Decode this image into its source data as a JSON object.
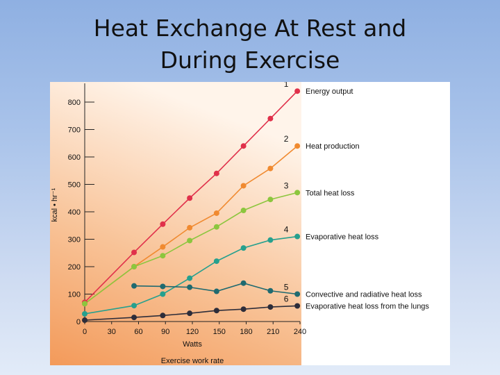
{
  "slide": {
    "title_line1": "Heat Exchange At Rest and",
    "title_line2": "During Exercise"
  },
  "chart_data": {
    "type": "line",
    "xlabel": "Watts",
    "xlabel2": "Exercise work rate",
    "ylabel": "kcal • hr⁻¹",
    "xlim": [
      0,
      240
    ],
    "ylim": [
      0,
      850
    ],
    "x_ticks": [
      "0",
      "30",
      "60",
      "90",
      "120",
      "150",
      "180",
      "210",
      "240"
    ],
    "y_ticks": [
      "0",
      "100",
      "200",
      "300",
      "400",
      "500",
      "600",
      "700",
      "800"
    ],
    "x": [
      0,
      55,
      87,
      117,
      147,
      177,
      207,
      237
    ],
    "series": [
      {
        "number": "1",
        "name": "Energy output",
        "color": "#e0304a",
        "values": [
          70,
          252,
          355,
          450,
          540,
          640,
          740,
          840
        ]
      },
      {
        "number": "2",
        "name": "Heat production",
        "color": "#f08a30",
        "values": [
          65,
          200,
          272,
          342,
          395,
          495,
          558,
          640
        ]
      },
      {
        "number": "3",
        "name": "Total heat loss",
        "color": "#8cc63e",
        "values": [
          65,
          200,
          240,
          295,
          345,
          405,
          445,
          470
        ]
      },
      {
        "number": "4",
        "name": "Evaporative heat loss",
        "color": "#26a08e",
        "values": [
          28,
          58,
          100,
          158,
          220,
          268,
          297,
          310
        ]
      },
      {
        "number": "5",
        "name": "Convective and radiative heat loss",
        "color": "#1f6a70",
        "values": [
          null,
          130,
          128,
          125,
          110,
          140,
          112,
          100
        ]
      },
      {
        "number": "6",
        "name": "Evaporative heat loss from the lungs",
        "color": "#2d2d3a",
        "values": [
          5,
          15,
          22,
          30,
          40,
          45,
          53,
          57
        ]
      }
    ]
  }
}
